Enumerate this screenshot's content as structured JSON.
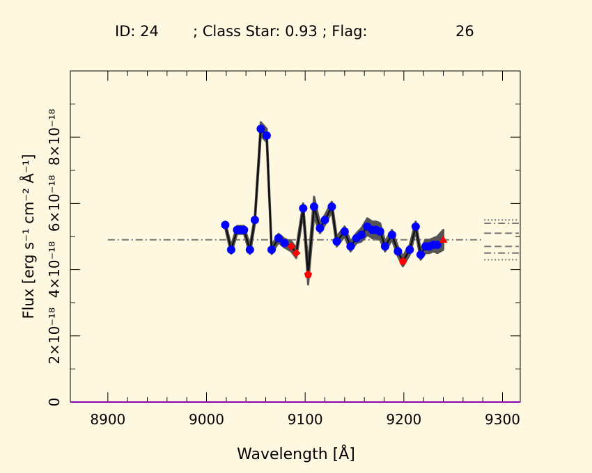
{
  "header": {
    "id_text": "ID: 24",
    "class_text": "; Class Star:  0.93 ; Flag:",
    "flag_value": "26"
  },
  "chart_data": {
    "type": "line",
    "title": "ID: 24    ; Class Star:  0.93 ; Flag:     26",
    "xlabel": "Wavelength [Å]",
    "ylabel": "Flux [erg s⁻¹ cm⁻² Å⁻¹]",
    "xlim": [
      8862,
      9318
    ],
    "ylim": [
      0,
      1e-17
    ],
    "x_ticks": [
      8900,
      9000,
      9100,
      9200,
      9300
    ],
    "x_tick_labels": [
      "8900",
      "9000",
      "9100",
      "9200",
      "9300"
    ],
    "y_ticks": [
      0,
      2e-18,
      4e-18,
      6e-18,
      8e-18
    ],
    "y_tick_labels": [
      "0",
      "2×10⁻¹⁸",
      "4×10⁻¹⁸",
      "6×10⁻¹⁸",
      "8×10⁻¹⁸"
    ],
    "continuum_level": 4.9e-18,
    "continuum_range": [
      8900,
      9280
    ],
    "side_levels": [
      5.5e-18,
      5.4e-18,
      5.1e-18,
      4.7e-18,
      4.5e-18,
      4.3e-18
    ],
    "colors": {
      "background": "#fff8e1",
      "spectrum": "#111111",
      "error_band": "#555555",
      "good_points": "#0000ff",
      "flagged_points": "#ff0000",
      "continuum": "#777777",
      "baseline": "#8800aa"
    },
    "series": [
      {
        "x": [
          9019,
          9025,
          9031,
          9034,
          9038,
          9044,
          9049,
          9055,
          9061,
          9066,
          9073,
          9079,
          9086,
          9091,
          9098,
          9103,
          9109,
          9115,
          9120,
          9127,
          9132,
          9140,
          9146,
          9152,
          9157,
          9163,
          9168,
          9172,
          9176,
          9181,
          9188,
          9194,
          9199,
          9206,
          9212,
          9217,
          9222,
          9226,
          9230,
          9234,
          9240
        ],
        "y": [
          5.35e-18,
          4.6e-18,
          5.2e-18,
          5.2e-18,
          5.2e-18,
          4.6e-18,
          5.5e-18,
          8.25e-18,
          8.05e-18,
          4.6e-18,
          4.95e-18,
          4.8e-18,
          4.7e-18,
          4.5e-18,
          5.85e-18,
          3.85e-18,
          5.9e-18,
          5.25e-18,
          5.5e-18,
          5.9e-18,
          4.85e-18,
          5.15e-18,
          4.7e-18,
          4.95e-18,
          5.05e-18,
          5.3e-18,
          5.2e-18,
          5.2e-18,
          5.15e-18,
          4.7e-18,
          5.05e-18,
          4.55e-18,
          4.25e-18,
          4.6e-18,
          5.3e-18,
          4.45e-18,
          4.7e-18,
          4.7e-18,
          4.75e-18,
          4.75e-18,
          4.9e-18
        ],
        "err": [
          1e-19,
          1.2e-19,
          1.2e-19,
          1.2e-19,
          1.2e-19,
          1.3e-19,
          1.3e-19,
          2e-19,
          2e-19,
          1.3e-19,
          1.3e-19,
          1.3e-19,
          1.5e-19,
          1.5e-19,
          1.5e-19,
          3e-19,
          3e-19,
          1.5e-19,
          1.5e-19,
          1.5e-19,
          1.5e-19,
          1.5e-19,
          1.5e-19,
          1.5e-19,
          2e-19,
          2.5e-19,
          2.5e-19,
          2.5e-19,
          2.5e-19,
          1.5e-19,
          1.5e-19,
          1.5e-19,
          1.5e-19,
          1.5e-19,
          1.5e-19,
          1.5e-19,
          2e-19,
          2e-19,
          2e-19,
          2.5e-19,
          3e-19
        ],
        "flagged": [
          false,
          false,
          false,
          false,
          false,
          false,
          false,
          false,
          false,
          false,
          false,
          false,
          true,
          true,
          false,
          true,
          false,
          false,
          false,
          false,
          false,
          false,
          false,
          false,
          false,
          false,
          false,
          false,
          false,
          false,
          false,
          false,
          true,
          false,
          false,
          false,
          false,
          false,
          false,
          false,
          true
        ],
        "markers": [
          "circle",
          "circle",
          "circle",
          "circle",
          "circle",
          "circle",
          "circle",
          "circle",
          "circle",
          "circle",
          "circle",
          "circle",
          "diamond",
          "diamond",
          "circle",
          "pentagon",
          "circle",
          "circle",
          "circle",
          "circle",
          "circle",
          "circle",
          "circle",
          "circle",
          "circle",
          "circle",
          "circle",
          "circle",
          "circle",
          "circle",
          "circle",
          "circle",
          "pentagon",
          "circle",
          "circle",
          "circle",
          "circle",
          "circle",
          "circle",
          "circle",
          "triangle"
        ]
      }
    ]
  }
}
